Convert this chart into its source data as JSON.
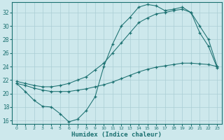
{
  "bg_color": "#cde8ec",
  "grid_color": "#aacdd4",
  "line_color": "#1a7070",
  "xlabel": "Humidex (Indice chaleur)",
  "xlim": [
    -0.5,
    23.5
  ],
  "ylim": [
    15.5,
    33.5
  ],
  "xticks": [
    0,
    1,
    2,
    3,
    4,
    5,
    6,
    7,
    8,
    9,
    10,
    11,
    12,
    13,
    14,
    15,
    16,
    17,
    18,
    19,
    20,
    21,
    22,
    23
  ],
  "yticks": [
    16,
    18,
    20,
    22,
    24,
    26,
    28,
    30,
    32
  ],
  "line1_x": [
    0,
    1,
    2,
    3,
    4,
    5,
    6,
    7,
    8,
    9,
    10,
    11,
    12,
    13,
    14,
    15,
    16,
    17,
    18,
    19,
    20,
    21,
    22,
    23
  ],
  "line1_y": [
    21.5,
    20.3,
    19.0,
    18.1,
    18.0,
    17.0,
    15.8,
    16.2,
    17.5,
    19.5,
    24.0,
    27.3,
    30.0,
    31.3,
    32.8,
    33.2,
    33.0,
    32.3,
    32.5,
    32.8,
    32.0,
    29.0,
    27.0,
    23.8
  ],
  "line2_x": [
    0,
    1,
    2,
    3,
    4,
    5,
    6,
    7,
    8,
    9,
    10,
    11,
    12,
    13,
    14,
    15,
    16,
    17,
    18,
    19,
    20,
    21,
    22,
    23
  ],
  "line2_y": [
    21.8,
    21.5,
    21.2,
    21.0,
    21.0,
    21.2,
    21.5,
    22.0,
    22.5,
    23.5,
    24.5,
    26.0,
    27.5,
    29.0,
    30.5,
    31.2,
    31.8,
    32.0,
    32.3,
    32.5,
    32.0,
    30.0,
    28.0,
    24.0
  ],
  "line3_x": [
    0,
    1,
    2,
    3,
    4,
    5,
    6,
    7,
    8,
    9,
    10,
    11,
    12,
    13,
    14,
    15,
    16,
    17,
    18,
    19,
    20,
    21,
    22,
    23
  ],
  "line3_y": [
    21.5,
    21.2,
    20.8,
    20.5,
    20.3,
    20.3,
    20.3,
    20.5,
    20.7,
    21.0,
    21.3,
    21.7,
    22.2,
    22.7,
    23.2,
    23.6,
    23.9,
    24.1,
    24.3,
    24.5,
    24.5,
    24.4,
    24.3,
    24.0
  ]
}
